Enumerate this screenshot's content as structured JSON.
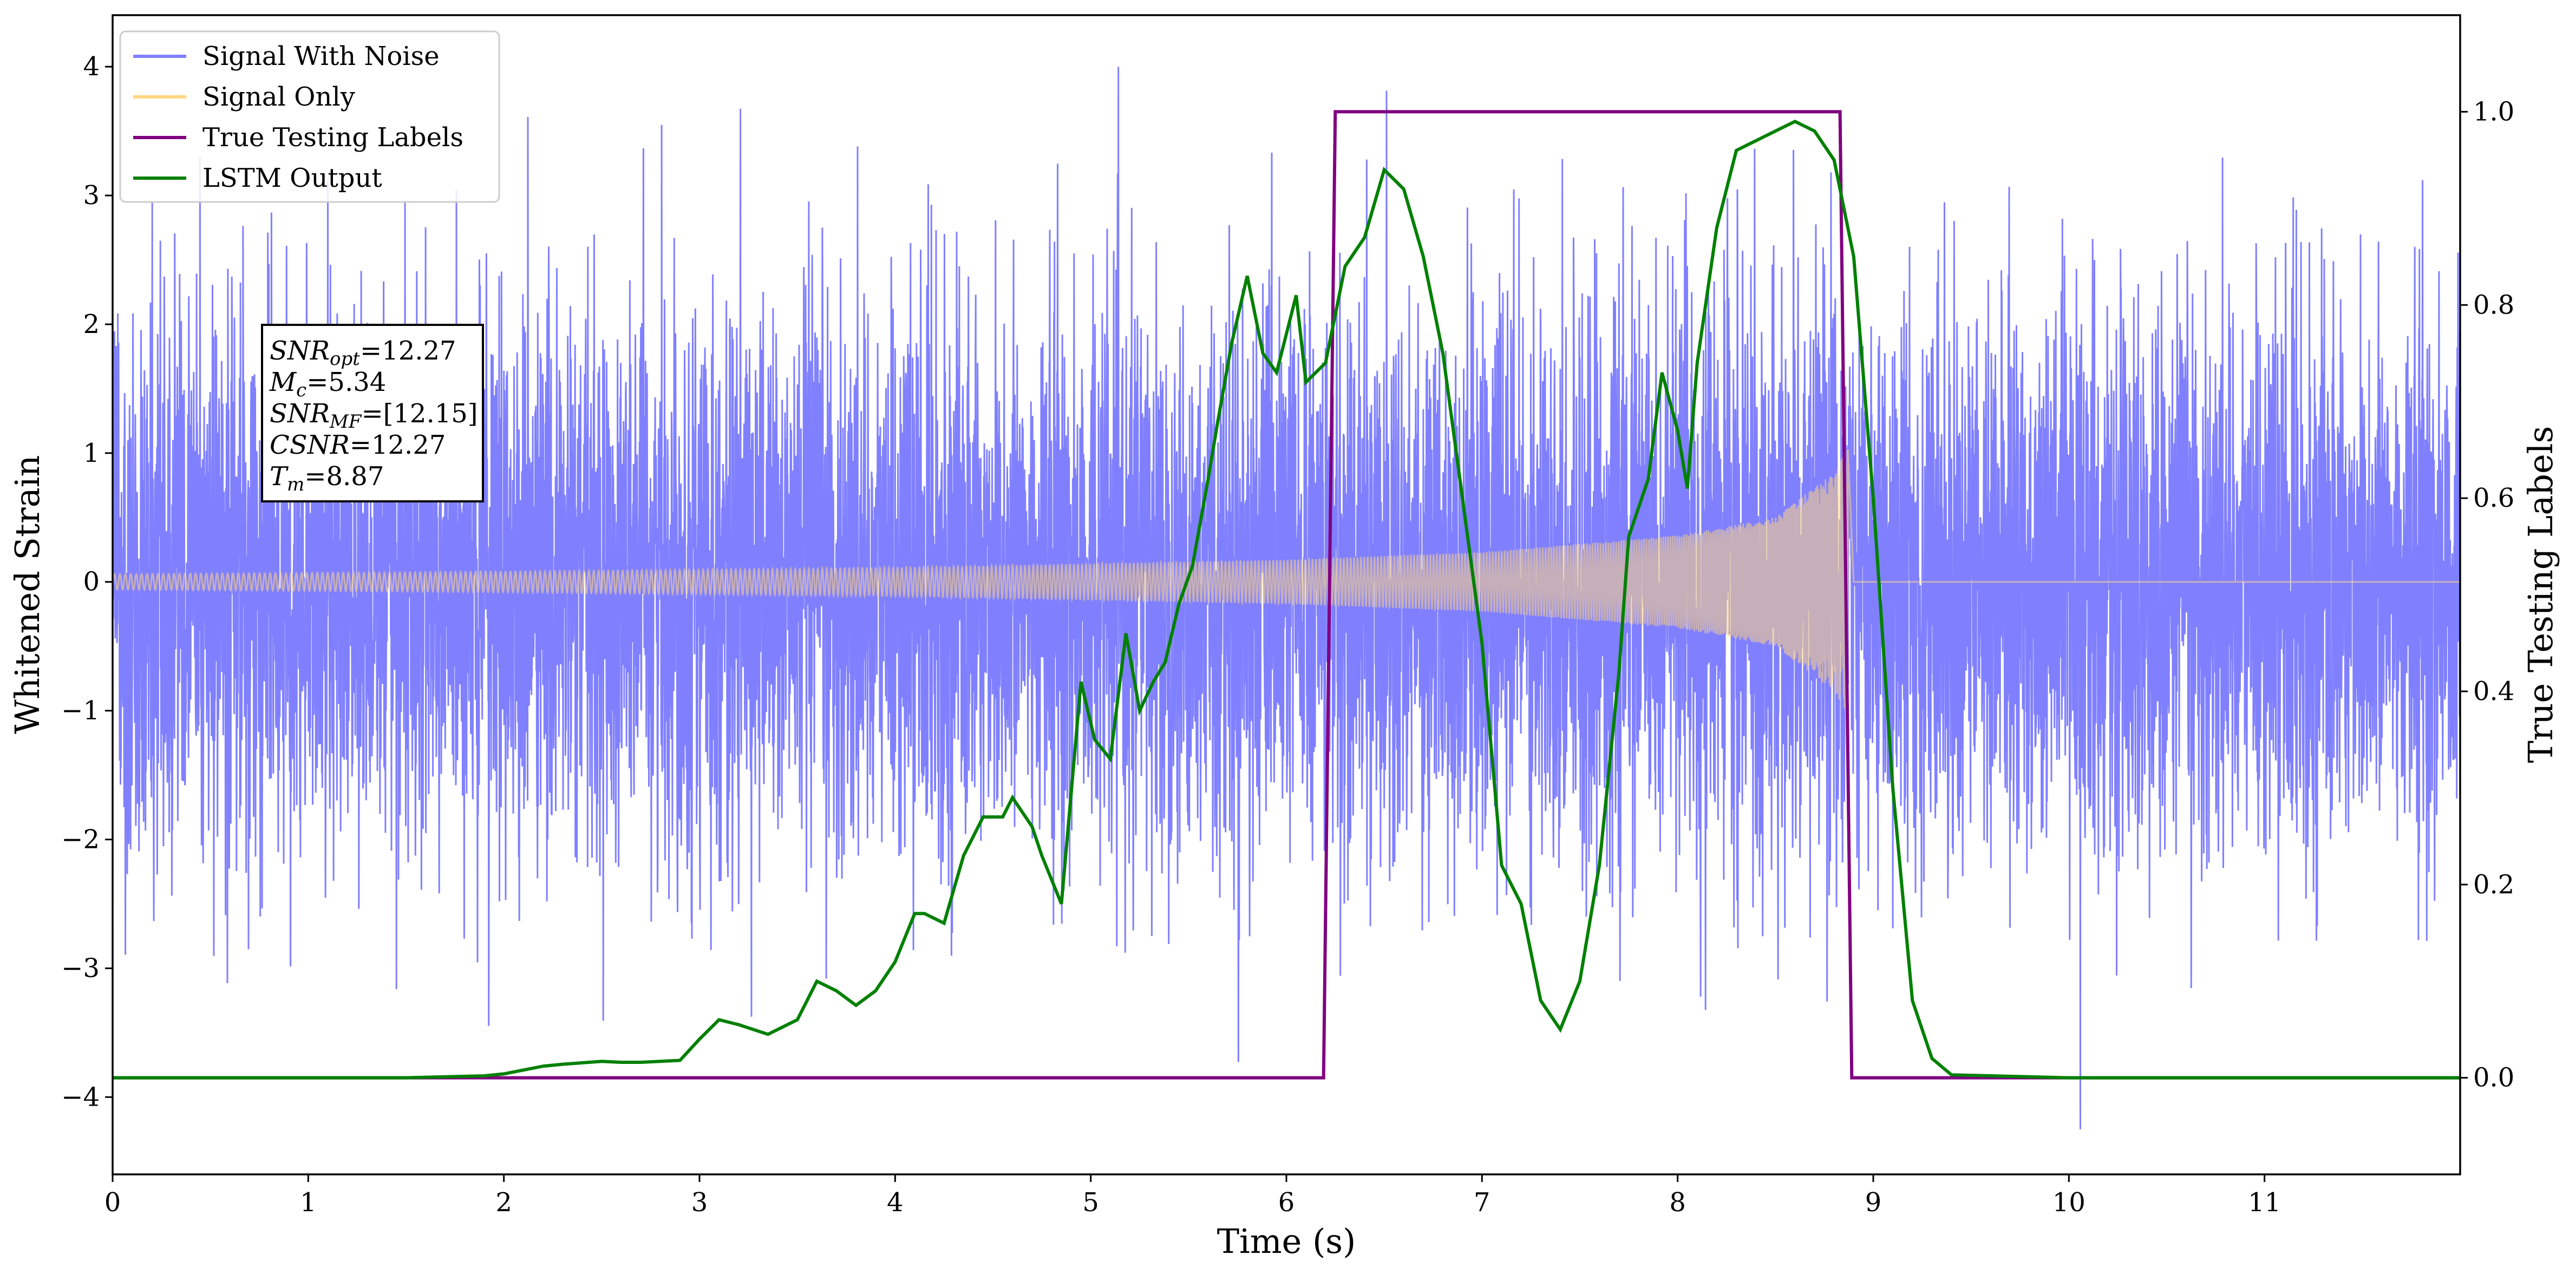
{
  "chart_data": {
    "type": "line",
    "xlabel": "Time (s)",
    "ylabel_left": "Whitened Strain",
    "ylabel_right": "True Testing Labels",
    "xlim": [
      0,
      12
    ],
    "ylim_left": [
      -4.6,
      4.4
    ],
    "ylim_right": [
      -0.1,
      1.1
    ],
    "x_ticks": [
      0,
      1,
      2,
      3,
      4,
      5,
      6,
      7,
      8,
      9,
      10,
      11
    ],
    "x_tick_labels": [
      "0",
      "1",
      "2",
      "3",
      "4",
      "5",
      "6",
      "7",
      "8",
      "9",
      "10",
      "11"
    ],
    "y_left_ticks": [
      -4,
      -3,
      -2,
      -1,
      0,
      1,
      2,
      3,
      4
    ],
    "y_left_tick_labels": [
      "−4",
      "−3",
      "−2",
      "−1",
      "0",
      "1",
      "2",
      "3",
      "4"
    ],
    "y_right_ticks": [
      0.0,
      0.2,
      0.4,
      0.6,
      0.8,
      1.0
    ],
    "y_right_tick_labels": [
      "0.0",
      "0.2",
      "0.4",
      "0.6",
      "0.8",
      "1.0"
    ],
    "grid": false,
    "legend_position": "top-left",
    "legend": [
      {
        "label": "Signal With Noise",
        "color": "#8080ff"
      },
      {
        "label": "Signal Only",
        "color": "#ffd580"
      },
      {
        "label": "True Testing Labels",
        "color": "#800080"
      },
      {
        "label": "LSTM Output",
        "color": "#008000"
      }
    ],
    "annotation_lines": [
      {
        "var": "SNR",
        "sub": "opt",
        "rest": "=12.27"
      },
      {
        "var": "M",
        "sub": "c",
        "rest": "=5.34"
      },
      {
        "var": "SNR",
        "sub": "MF",
        "rest": "=[12.15]"
      },
      {
        "var": "CSNR",
        "sub": "",
        "rest": "=12.27"
      },
      {
        "var": "T",
        "sub": "m",
        "rest": "=8.87"
      }
    ],
    "series": [
      {
        "name": "Signal With Noise",
        "axis": "left",
        "color": "#8080ff",
        "noise_sigma": 1.0,
        "approx_range": [
          -4.2,
          4.0
        ]
      },
      {
        "name": "Signal Only",
        "axis": "left",
        "color": "#ffd580",
        "description_values": {
          "x": [
            0,
            2,
            4,
            6,
            7,
            8,
            8.5,
            8.8,
            8.87,
            8.9,
            12
          ],
          "envelope": [
            0.06,
            0.08,
            0.11,
            0.17,
            0.23,
            0.36,
            0.5,
            0.85,
            1.05,
            0.0,
            0.0
          ]
        }
      },
      {
        "name": "True Testing Labels",
        "axis": "right",
        "color": "#800080",
        "x": [
          0,
          6.19,
          6.25,
          8.83,
          8.89,
          12
        ],
        "values": [
          0,
          0,
          1,
          1,
          0,
          0
        ]
      },
      {
        "name": "LSTM Output",
        "axis": "right",
        "color": "#008000",
        "x": [
          0,
          0.5,
          1.0,
          1.5,
          1.9,
          2.0,
          2.1,
          2.2,
          2.3,
          2.5,
          2.6,
          2.7,
          2.9,
          3.0,
          3.1,
          3.2,
          3.35,
          3.5,
          3.6,
          3.7,
          3.8,
          3.9,
          4.0,
          4.1,
          4.15,
          4.25,
          4.35,
          4.45,
          4.55,
          4.6,
          4.7,
          4.75,
          4.85,
          4.95,
          5.02,
          5.1,
          5.18,
          5.25,
          5.32,
          5.38,
          5.45,
          5.52,
          5.6,
          5.65,
          5.72,
          5.8,
          5.88,
          5.95,
          6.05,
          6.1,
          6.2,
          6.3,
          6.4,
          6.5,
          6.6,
          6.7,
          6.8,
          6.9,
          7.0,
          7.1,
          7.2,
          7.3,
          7.4,
          7.5,
          7.6,
          7.7,
          7.75,
          7.85,
          7.92,
          8.0,
          8.05,
          8.1,
          8.2,
          8.3,
          8.4,
          8.5,
          8.6,
          8.7,
          8.8,
          8.9,
          9.0,
          9.1,
          9.2,
          9.3,
          9.4,
          10.0,
          12.0
        ],
        "values": [
          0.0,
          0.0,
          0.0,
          0.0,
          0.002,
          0.004,
          0.008,
          0.012,
          0.014,
          0.017,
          0.016,
          0.016,
          0.018,
          0.04,
          0.06,
          0.055,
          0.045,
          0.06,
          0.1,
          0.09,
          0.075,
          0.09,
          0.12,
          0.17,
          0.17,
          0.16,
          0.23,
          0.27,
          0.27,
          0.29,
          0.26,
          0.23,
          0.18,
          0.41,
          0.35,
          0.33,
          0.46,
          0.38,
          0.41,
          0.43,
          0.49,
          0.53,
          0.62,
          0.68,
          0.76,
          0.83,
          0.75,
          0.73,
          0.81,
          0.72,
          0.74,
          0.84,
          0.87,
          0.94,
          0.92,
          0.85,
          0.75,
          0.6,
          0.45,
          0.22,
          0.18,
          0.08,
          0.05,
          0.1,
          0.22,
          0.42,
          0.56,
          0.62,
          0.73,
          0.67,
          0.61,
          0.74,
          0.88,
          0.96,
          0.97,
          0.98,
          0.99,
          0.98,
          0.95,
          0.85,
          0.6,
          0.3,
          0.08,
          0.02,
          0.003,
          0.0,
          0.0
        ]
      }
    ]
  }
}
